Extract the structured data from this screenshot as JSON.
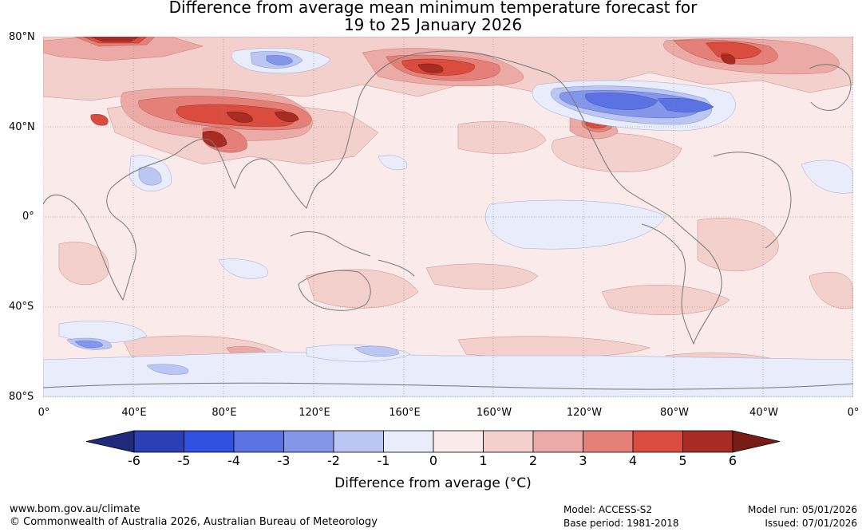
{
  "title": {
    "line1": "Difference from average mean minimum temperature forecast for",
    "line2": "19 to 25 January 2026"
  },
  "map": {
    "latitude_labels": [
      "80°N",
      "40°N",
      "0°",
      "40°S",
      "80°S"
    ],
    "longitude_labels": [
      "0°",
      "40°E",
      "80°E",
      "120°E",
      "160°E",
      "160°W",
      "120°W",
      "80°W",
      "40°W",
      "0°"
    ],
    "colors": {
      "ocean_base": "#fbeaea",
      "land_outline": "#777777",
      "grid": "#888888"
    }
  },
  "colorbar": {
    "ticks": [
      "-6",
      "-5",
      "-4",
      "-3",
      "-2",
      "-1",
      "0",
      "1",
      "2",
      "3",
      "4",
      "5",
      "6"
    ],
    "colors": [
      "#1f2a7a",
      "#2a40b4",
      "#3050e0",
      "#5a72e2",
      "#8496e8",
      "#bcc6f2",
      "#e8ecfb",
      "#fbeaea",
      "#f4d0cd",
      "#ecaaa6",
      "#e58078",
      "#d94c3e",
      "#a82c24",
      "#7a1c16"
    ],
    "title": "Difference from average (°C)"
  },
  "footer": {
    "website": "www.bom.gov.au/climate",
    "copyright": "© Commonwealth of Australia 2026, Australian Bureau of Meteorology",
    "model": "Model: ACCESS-S2",
    "base_period": "Base period: 1981-2018",
    "model_run": "Model run: 05/01/2026",
    "issued": "Issued: 07/01/2026"
  }
}
